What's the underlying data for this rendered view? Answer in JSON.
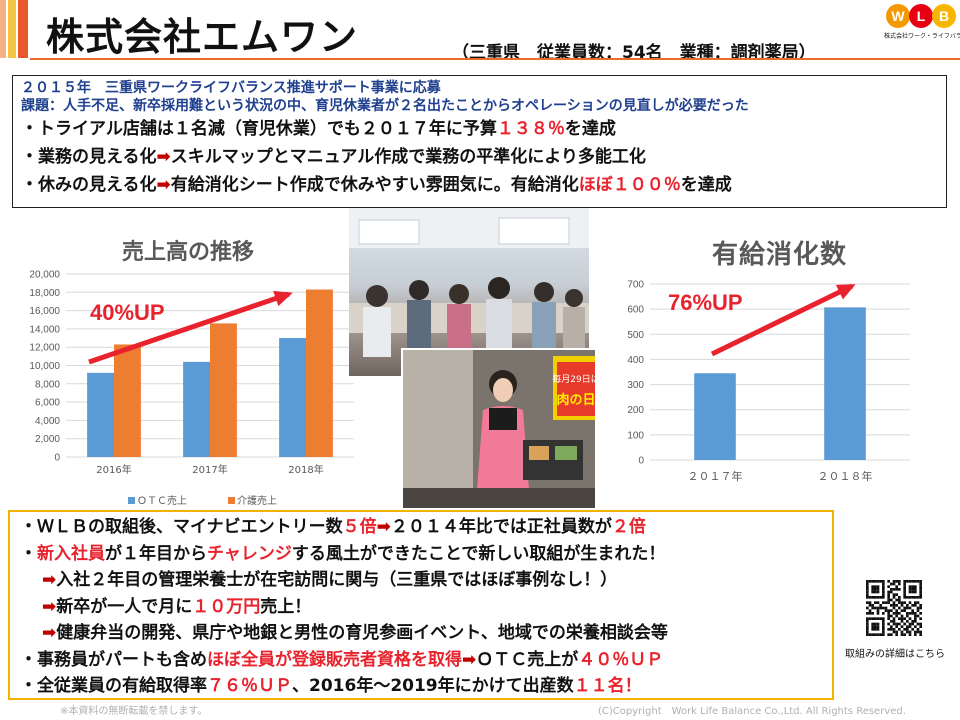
{
  "header": {
    "title": "株式会社エムワン",
    "subtitle": "（三重県　従業員数：54名　業種：調剤薬局）",
    "logo_letters": [
      "W",
      "L",
      "B"
    ],
    "logo_caption": "株式会社ワーク・ライフバランス"
  },
  "summary": {
    "heading": "２０１５年　三重県ワークライフバランス推進サポート事業に応募",
    "issue": "課題：人手不足、新卒採用難という状況の中、育児休業者が２名出たことからオペレーションの見直しが必要だった",
    "line1": [
      "・トライアル店舗は１名減（育児休業）でも２０１７年に予算",
      "１３８％",
      "を達成"
    ],
    "line2": [
      "・業務の見える化",
      "➡",
      "スキルマップとマニュアル作成で業務の平準化により多能工化"
    ],
    "line3": [
      "・休みの見える化",
      "➡",
      "有給消化シート作成で休みやすい雰囲気に。有給消化",
      "ほぼ１００％",
      "を達成"
    ]
  },
  "sales_chart_title": "売上高の推移",
  "leave_chart_title": "有給消化数",
  "chart_data": [
    {
      "type": "bar",
      "title": "売上高の推移",
      "categories": [
        "2016年",
        "2017年",
        "2018年"
      ],
      "series": [
        {
          "name": "ＯＴＣ売上",
          "values": [
            9200,
            10400,
            13000
          ],
          "color": "#5b9bd5"
        },
        {
          "name": "介護売上",
          "values": [
            12300,
            14600,
            18300
          ],
          "color": "#ed7d31"
        }
      ],
      "ylim": [
        0,
        20000
      ],
      "yticks": [
        "0",
        "2,000",
        "4,000",
        "6,000",
        "8,000",
        "10,000",
        "12,000",
        "14,000",
        "16,000",
        "18,000",
        "20,000"
      ],
      "legend": "bottom",
      "grid": true,
      "annotation": "40%UP",
      "annotation_color": "#e8232d"
    },
    {
      "type": "bar",
      "title": "有給消化数",
      "categories": [
        "２０１７年",
        "２０１８年"
      ],
      "series": [
        {
          "values": [
            345,
            607
          ],
          "color": "#5b9bd5"
        }
      ],
      "ylim": [
        0,
        700
      ],
      "yticks": [
        "0",
        "100",
        "200",
        "300",
        "400",
        "500",
        "600",
        "700"
      ],
      "grid": true,
      "annotation": "76%UP",
      "annotation_color": "#e8232d"
    }
  ],
  "photos": {
    "photo1_sign": "",
    "photo2_sign": "毎月29日は肉の日"
  },
  "results": {
    "l1": [
      "・ＷＬＢの取組後、マイナビエントリー数",
      "５倍",
      "➡",
      "２０１４年比では正社員数が",
      "２倍"
    ],
    "l2": [
      "・",
      "新入社員",
      "が１年目から",
      "チャレンジ",
      "する風土ができたことで新しい取組が生まれた！"
    ],
    "l3": [
      "➡",
      "入社２年目の管理栄養士が在宅訪問に関与（三重県ではほぼ事例なし！）"
    ],
    "l4": [
      "➡",
      "新卒が一人で月に",
      "１０万円",
      "売上！"
    ],
    "l5": [
      "➡",
      "健康弁当の開発、県庁や地銀と男性の育児参画イベント、地域での栄養相談会等"
    ],
    "l6": [
      "・事務員がパートも含め",
      "ほぼ全員が登録販売者資格を取得",
      "➡",
      "ＯＴＣ売上が",
      "４０％ＵＰ"
    ],
    "l7": [
      "・全従業員の有給取得率",
      "７６％ＵＰ",
      "、2016年～2019年にかけて出産数",
      "１１名！"
    ]
  },
  "qr_caption": "取組みの詳細はこちら",
  "footer": {
    "left": "※本資料の無断転載を禁します。",
    "right": "(C)Copyright　Work Life Balance Co.,Ltd. All Rights Reserved."
  },
  "colors": {
    "accent_red": "#e8232d",
    "heading_blue": "#1f3f8f",
    "box_border": "#f2b300",
    "otc_blue": "#5b9bd5",
    "care_orange": "#ed7d31"
  }
}
